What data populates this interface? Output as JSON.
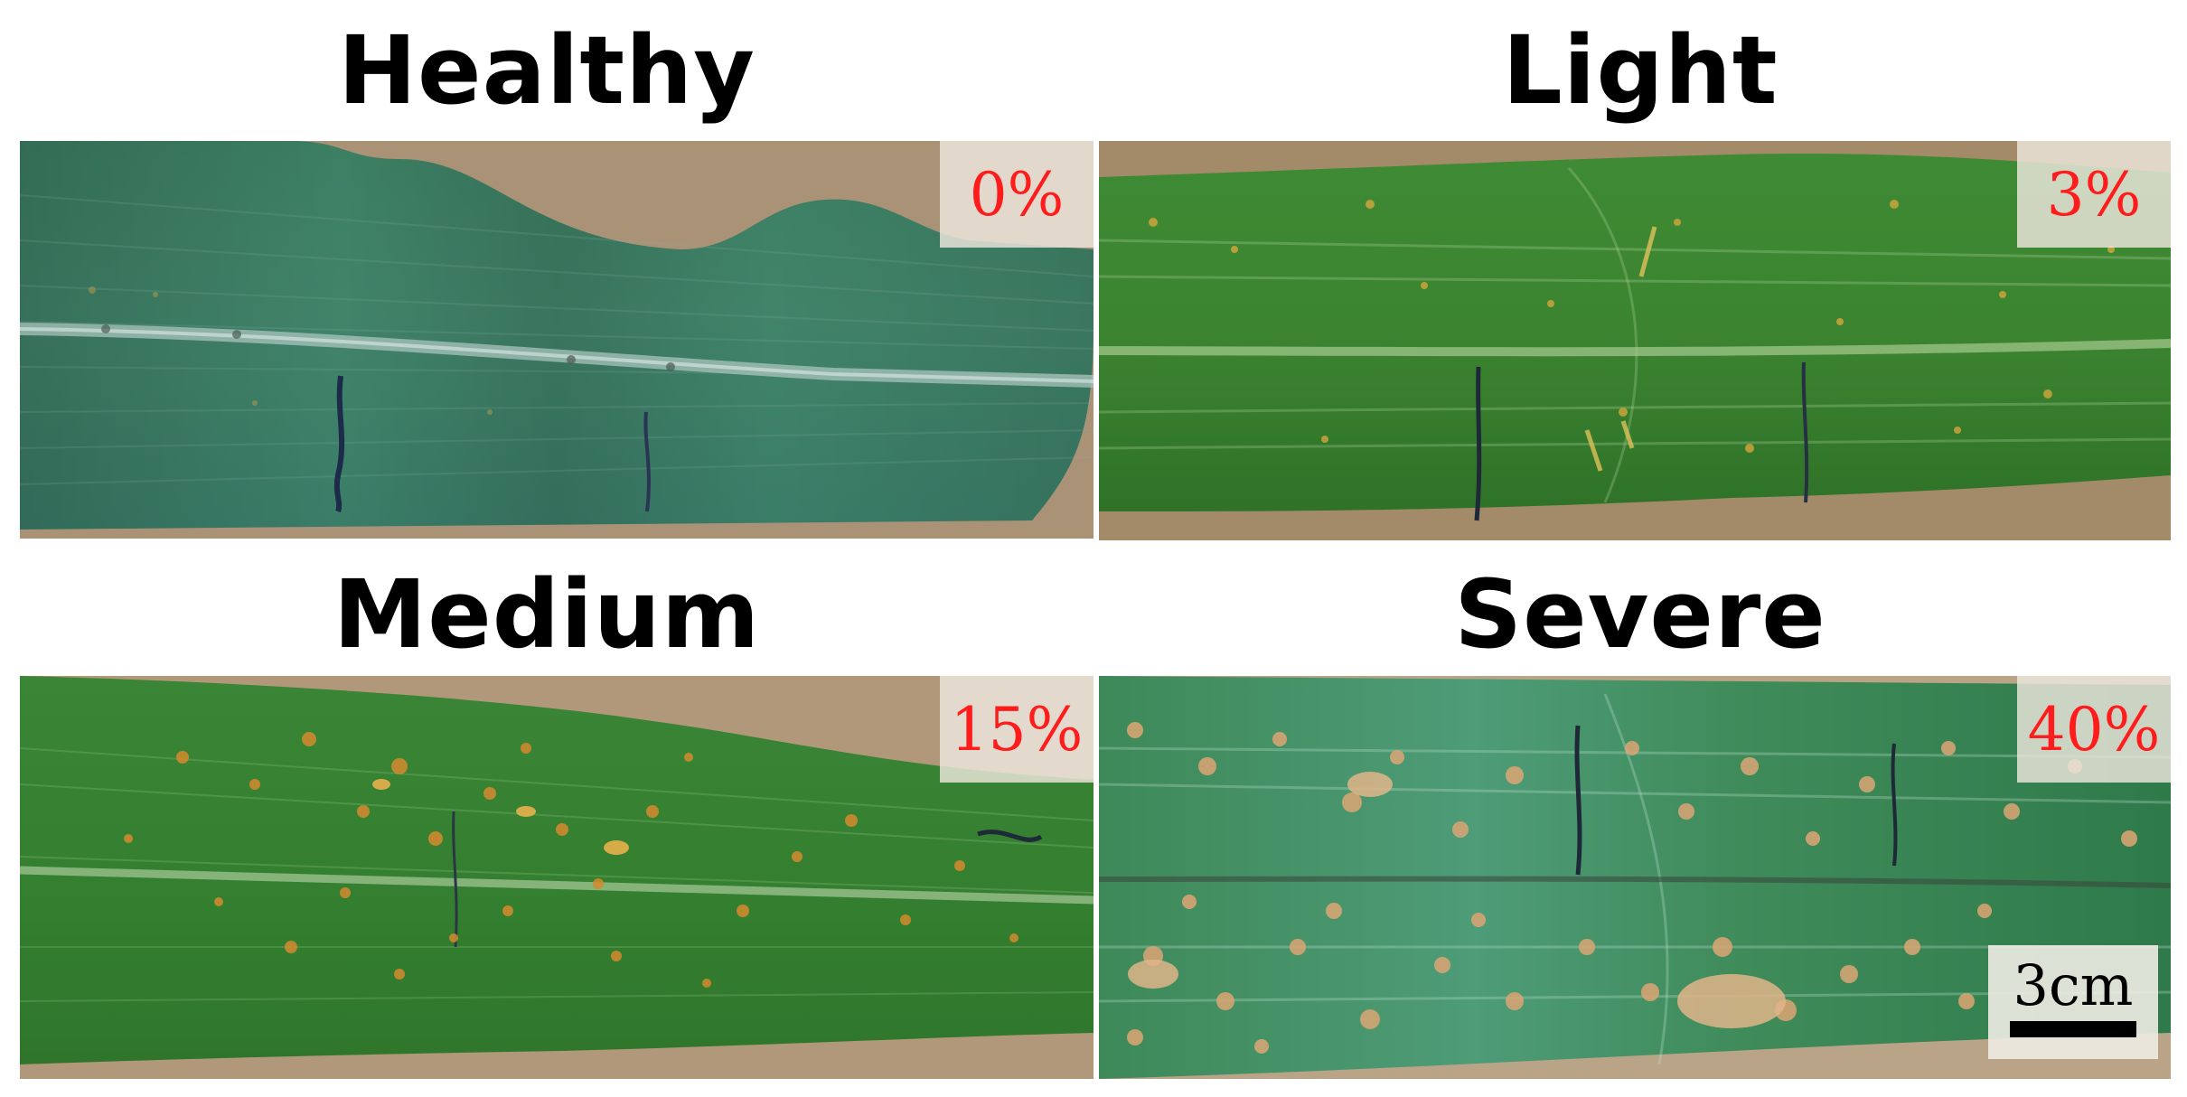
{
  "panels": [
    {
      "title": "Healthy",
      "severity": "0%"
    },
    {
      "title": "Light",
      "severity": "3%"
    },
    {
      "title": "Medium",
      "severity": "15%"
    },
    {
      "title": "Severe",
      "severity": "40%"
    }
  ],
  "scale_bar": {
    "label": "3cm"
  },
  "colors": {
    "title_text": "#000000",
    "severity_text": "#ff1c1c",
    "background_soil": "#b59e80",
    "leaf_green": "#2e7a3c",
    "lesion_orange": "#d58a2e"
  }
}
